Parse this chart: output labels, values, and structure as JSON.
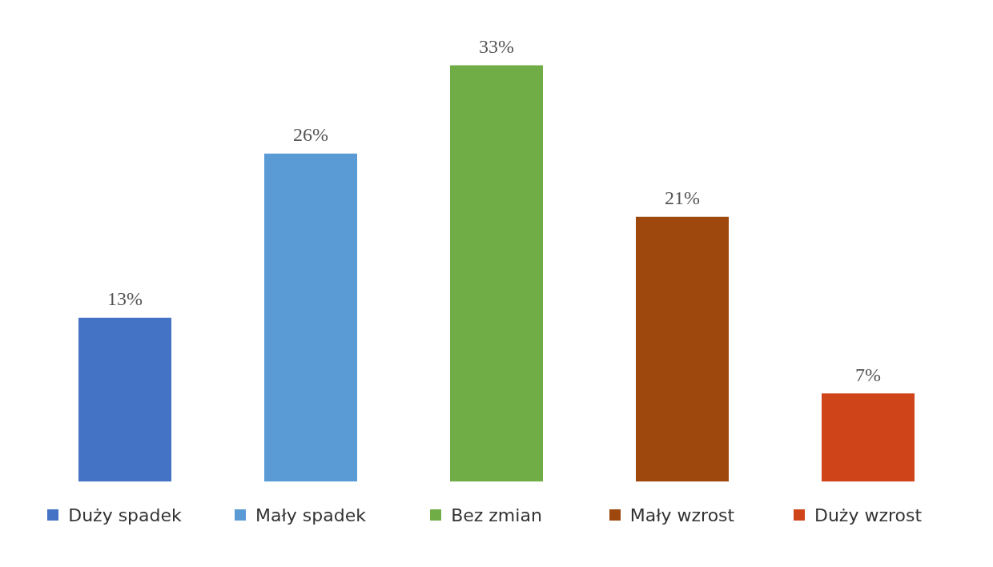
{
  "chart_data": {
    "type": "bar",
    "categories": [
      "Duży spadek",
      "Mały spadek",
      "Bez zmian",
      "Mały wzrost",
      "Duży wzrost"
    ],
    "values": [
      13,
      26,
      33,
      21,
      7
    ],
    "colors": [
      "#4472c4",
      "#5b9bd5",
      "#70ad47",
      "#9e480e",
      "#d0441a"
    ],
    "value_labels": [
      "13%",
      "26%",
      "33%",
      "21%",
      "7%"
    ],
    "tick_labels": "x",
    "grid": false
  }
}
